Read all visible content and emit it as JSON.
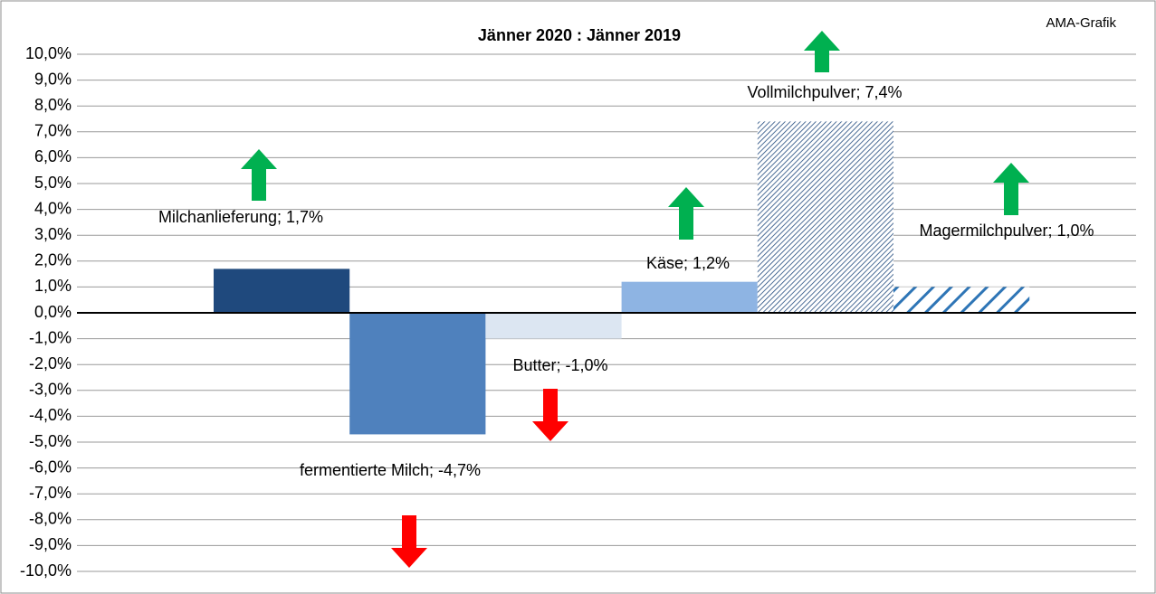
{
  "chart_data": {
    "type": "bar",
    "title": "Jänner 2020 : Jänner 2019",
    "annotation": "AMA-Grafik",
    "categories": [
      "Milchanlieferung",
      "fermentierte Milch",
      "Butter",
      "Käse",
      "Vollmilchpulver",
      "Magermilchpulver"
    ],
    "values": [
      1.7,
      -4.7,
      -1.0,
      1.2,
      7.4,
      1.0
    ],
    "value_labels": [
      "Milchanlieferung; 1,7%",
      "fermentierte Milch; -4,7%",
      "Butter; -1,0%",
      "Käse; 1,2%",
      "Vollmilchpulver; 7,4%",
      "Magermilchpulver; 1,0%"
    ],
    "colors": [
      "#1f497d",
      "#4f81bd",
      "#dce6f2",
      "#8eb4e3",
      "#1f497d",
      "#2e75b6"
    ],
    "hatch": [
      null,
      null,
      null,
      null,
      "fine",
      "coarse"
    ],
    "ylim": [
      -10,
      10
    ],
    "yticks": [
      {
        "value": -10,
        "label": "-10,0%"
      },
      {
        "value": -9,
        "label": "-9,0%"
      },
      {
        "value": -8,
        "label": "-8,0%"
      },
      {
        "value": -7,
        "label": "-7,0%"
      },
      {
        "value": -6,
        "label": "-6,0%"
      },
      {
        "value": -5,
        "label": "-5,0%"
      },
      {
        "value": -4,
        "label": "-4,0%"
      },
      {
        "value": -3,
        "label": "-3,0%"
      },
      {
        "value": -2,
        "label": "-2,0%"
      },
      {
        "value": -1,
        "label": "-1,0%"
      },
      {
        "value": 0,
        "label": "0,0%"
      },
      {
        "value": 1,
        "label": "1,0%"
      },
      {
        "value": 2,
        "label": "2,0%"
      },
      {
        "value": 3,
        "label": "3,0%"
      },
      {
        "value": 4,
        "label": "4,0%"
      },
      {
        "value": 5,
        "label": "5,0%"
      },
      {
        "value": 6,
        "label": "6,0%"
      },
      {
        "value": 7,
        "label": "7,0%"
      },
      {
        "value": 8,
        "label": "8,0%"
      },
      {
        "value": 9,
        "label": "9,0%"
      },
      {
        "value": 10,
        "label": "10,0%"
      }
    ],
    "grid": true
  }
}
